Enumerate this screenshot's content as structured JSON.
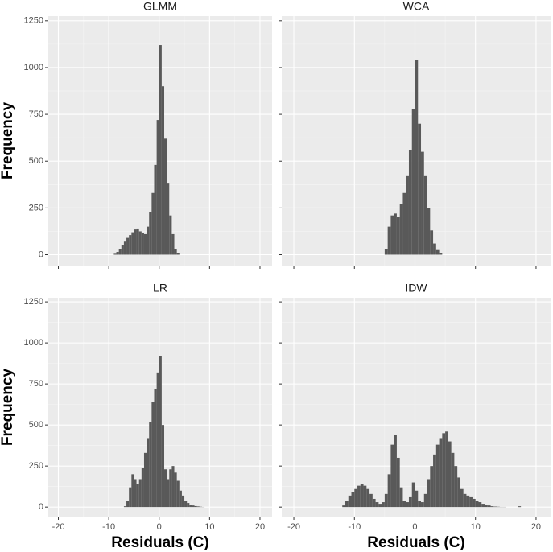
{
  "chart_data": [
    {
      "type": "histogram",
      "title": "GLMM",
      "y_label": "Frequency",
      "color": "#595959",
      "bins": [
        -9,
        -8.5,
        -8,
        -7.5,
        -7,
        -6.5,
        -6,
        -5.5,
        -5,
        -4.5,
        -4,
        -3.5,
        -3,
        -2.5,
        -2,
        -1.5,
        -1,
        -0.5,
        0,
        0.5,
        1,
        1.5,
        2,
        2.5,
        3,
        3.5,
        4
      ],
      "values": [
        5,
        15,
        30,
        50,
        70,
        90,
        105,
        120,
        135,
        140,
        125,
        115,
        110,
        150,
        230,
        330,
        480,
        720,
        1120,
        900,
        620,
        380,
        210,
        110,
        30,
        8
      ],
      "xlim": [
        -22,
        22.4
      ],
      "ylim": [
        -58,
        1275
      ],
      "xticks": [
        -20,
        -10,
        0,
        10,
        20
      ],
      "yticks": [
        0,
        250,
        500,
        750,
        1000,
        1250
      ],
      "grid": true
    },
    {
      "type": "histogram",
      "title": "WCA",
      "color": "#595959",
      "bins": [
        -5,
        -4.5,
        -4,
        -3.5,
        -3,
        -2.5,
        -2,
        -1.5,
        -1,
        -0.5,
        0,
        0.5,
        1,
        1.5,
        2,
        2.5,
        3,
        3.5,
        4,
        4.5
      ],
      "values": [
        30,
        150,
        210,
        220,
        200,
        270,
        330,
        420,
        560,
        780,
        1040,
        700,
        550,
        420,
        250,
        130,
        60,
        25,
        8
      ],
      "xlim": [
        -22,
        22.4
      ],
      "ylim": [
        -58,
        1275
      ],
      "xticks": [
        -20,
        -10,
        0,
        10,
        20
      ],
      "yticks": [
        0,
        250,
        500,
        750,
        1000,
        1250
      ],
      "grid": true
    },
    {
      "type": "histogram",
      "title": "LR",
      "y_label": "Frequency",
      "x_label": "Residuals (C)",
      "color": "#595959",
      "bins": [
        -7,
        -6.5,
        -6,
        -5.5,
        -5,
        -4.5,
        -4,
        -3.5,
        -3,
        -2.5,
        -2,
        -1.5,
        -1,
        -0.5,
        0,
        0.5,
        1,
        1.5,
        2,
        2.5,
        3,
        3.5,
        4,
        4.5,
        5,
        5.5,
        6,
        6.5,
        7,
        7.5,
        8,
        8.5,
        9
      ],
      "values": [
        5,
        40,
        120,
        200,
        170,
        140,
        170,
        240,
        330,
        420,
        520,
        640,
        720,
        820,
        920,
        500,
        230,
        170,
        230,
        250,
        210,
        160,
        100,
        70,
        40,
        25,
        15,
        10,
        6,
        4,
        2,
        1
      ],
      "xlim": [
        -22,
        22.4
      ],
      "ylim": [
        -58,
        1275
      ],
      "xticks": [
        -20,
        -10,
        0,
        10,
        20
      ],
      "yticks": [
        0,
        250,
        500,
        750,
        1000,
        1250
      ],
      "grid": true
    },
    {
      "type": "histogram",
      "title": "IDW",
      "x_label": "Residuals (C)",
      "color": "#595959",
      "bins": [
        -12,
        -11.5,
        -11,
        -10.5,
        -10,
        -9.5,
        -9,
        -8.5,
        -8,
        -7.5,
        -7,
        -6.5,
        -6,
        -5.5,
        -5,
        -4.5,
        -4,
        -3.5,
        -3,
        -2.5,
        -2,
        -1.5,
        -1,
        -0.5,
        0,
        0.5,
        1,
        1.5,
        2,
        2.5,
        3,
        3.5,
        4,
        4.5,
        5,
        5.5,
        6,
        6.5,
        7,
        7.5,
        8,
        8.5,
        9,
        9.5,
        10,
        10.5,
        11,
        11.5,
        12,
        12.5,
        13,
        13.5,
        14,
        14.5,
        15,
        15.5,
        16,
        16.5,
        17,
        17.5
      ],
      "values": [
        10,
        40,
        70,
        90,
        110,
        130,
        140,
        130,
        110,
        80,
        50,
        30,
        20,
        30,
        80,
        200,
        380,
        440,
        300,
        120,
        40,
        30,
        60,
        150,
        100,
        40,
        30,
        80,
        170,
        250,
        320,
        380,
        420,
        450,
        460,
        400,
        330,
        250,
        180,
        110,
        80,
        70,
        60,
        50,
        40,
        30,
        20,
        15,
        10,
        5,
        3,
        2,
        1,
        1,
        0,
        0,
        0,
        0,
        5
      ],
      "xlim": [
        -22,
        22.4
      ],
      "ylim": [
        -58,
        1275
      ],
      "xticks": [
        -20,
        -10,
        0,
        10,
        20
      ],
      "yticks": [
        0,
        250,
        500,
        750,
        1000,
        1250
      ],
      "grid": true
    }
  ]
}
